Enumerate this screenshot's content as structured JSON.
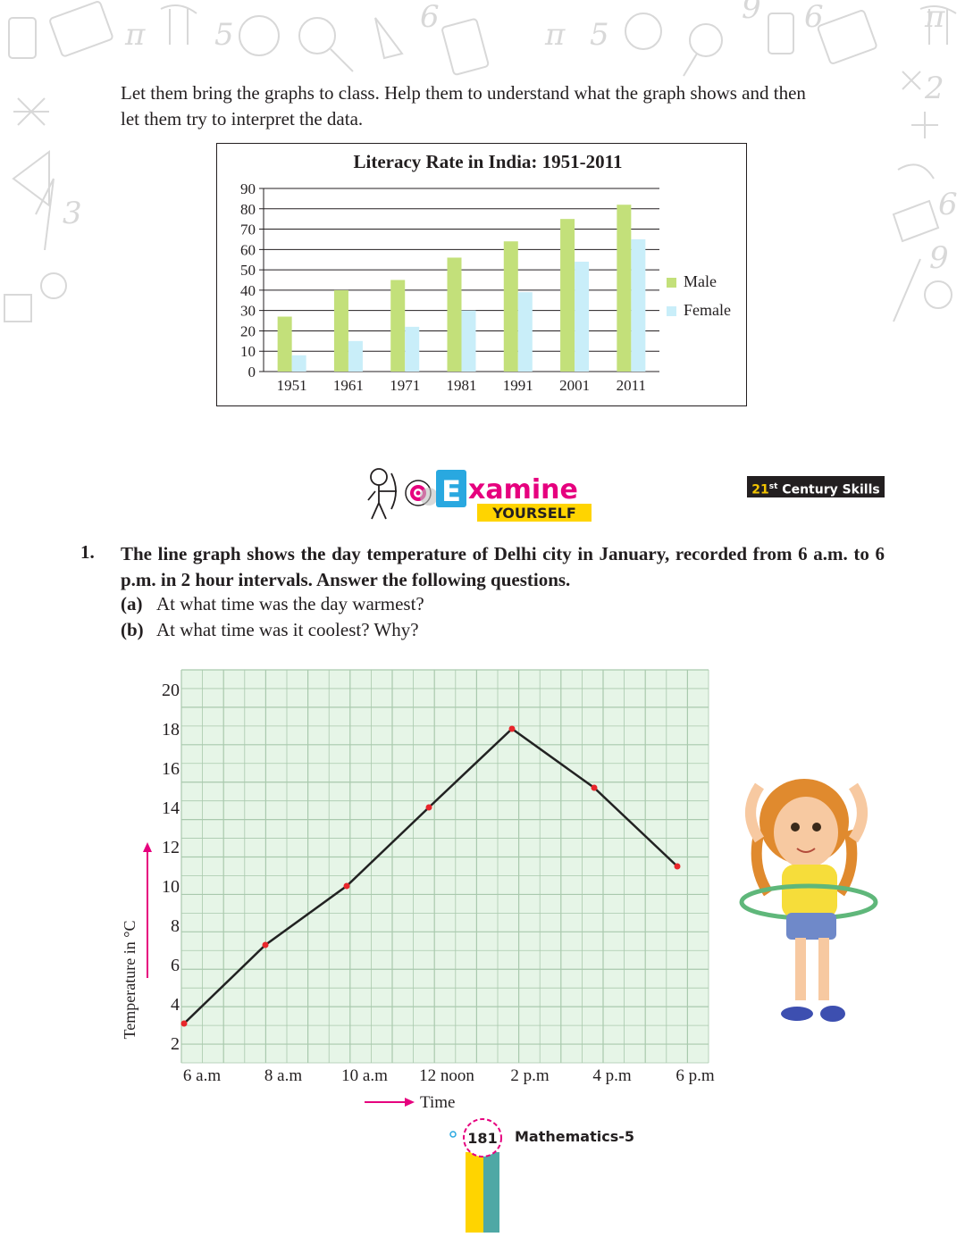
{
  "intro": {
    "line1": "Let them bring the graphs to class. Help them to understand what the graph shows and then",
    "line2": "let them try to interpret the data."
  },
  "literacy_chart": {
    "chart_data": {
      "type": "bar",
      "title": "Literacy Rate in India: 1951-2011",
      "categories": [
        "1951",
        "1961",
        "1971",
        "1981",
        "1991",
        "2001",
        "2011"
      ],
      "series": [
        {
          "name": "Male",
          "values": [
            27,
            40,
            45,
            56,
            64,
            75,
            82
          ]
        },
        {
          "name": "Female",
          "values": [
            8,
            15,
            22,
            30,
            39,
            54,
            65
          ]
        }
      ],
      "ylim": [
        0,
        90
      ],
      "yticks": [
        "0",
        "10",
        "20",
        "30",
        "40",
        "50",
        "60",
        "70",
        "80",
        "90"
      ],
      "grid": true,
      "legend": "right",
      "colors": {
        "Male": "#c3e07a",
        "Female": "#c9eef9"
      }
    }
  },
  "badge": {
    "examine_letter": "E",
    "examine_rest": "xamine",
    "yourself": "YOURSELF",
    "skills_num": "21",
    "skills_sup": "st",
    "skills_text": "Century Skills"
  },
  "question": {
    "number": "1.",
    "text": "The line graph shows the day temperature of Delhi city in January, recorded from 6 a.m. to 6 p.m. in 2 hour intervals. Answer the following questions.",
    "a_label": "(a)",
    "a_text": "At what time was the day warmest?",
    "b_label": "(b)",
    "b_text": "At what time was it coolest? Why?"
  },
  "temperature_chart": {
    "chart_data": {
      "type": "line",
      "x": [
        "6 a.m",
        "8 a.m",
        "10 a.m",
        "12 noon",
        "2 p.m",
        "4 p.m",
        "6 p.m"
      ],
      "y": [
        3,
        7,
        10,
        14,
        18,
        15,
        11
      ],
      "yticks": [
        "2",
        "4",
        "6",
        "8",
        "10",
        "12",
        "14",
        "16",
        "18",
        "20"
      ],
      "ylim": [
        1,
        21
      ],
      "ylabel": "Temperature in °C",
      "xlabel": "Time",
      "grid": true,
      "colors": {
        "line": "#222222",
        "point": "#e8262b",
        "grid": "#a9c9ad",
        "background": "#e6f5e7"
      }
    }
  },
  "footer": {
    "page_number": "181",
    "book_title": "Mathematics-5"
  }
}
